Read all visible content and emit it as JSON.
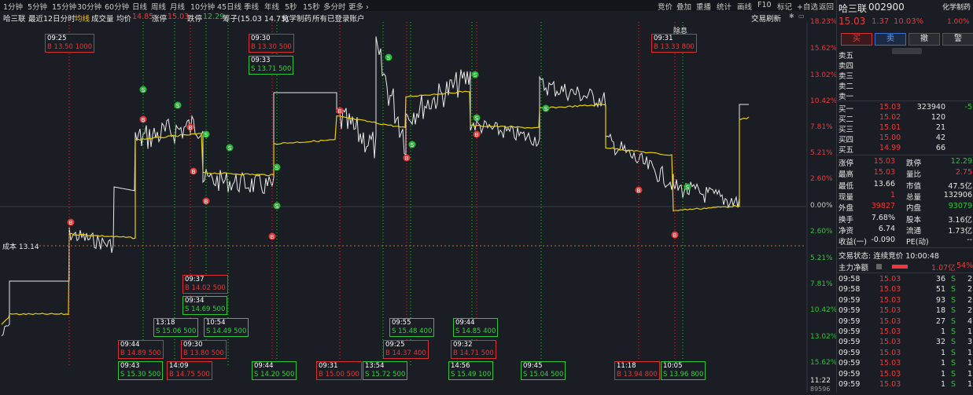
{
  "toolbar": {
    "periods": [
      "1分钟",
      "5分钟",
      "15分钟",
      "30分钟",
      "60分钟",
      "日线",
      "周线",
      "月线",
      "10分钟",
      "45日线",
      "季线",
      "年线",
      "5秒",
      "15秒",
      "多分时",
      "更多 ›"
    ],
    "right": [
      "竞价",
      "叠加",
      "重播",
      "统计",
      "画线",
      "F10",
      "标记",
      "+自选",
      "返回"
    ]
  },
  "infobar": {
    "stock": "哈三联",
    "days": "最近12日分时",
    "avg_line": "均线",
    "volume": "成交量",
    "avg_label": "均价",
    "avg_value": "14.85",
    "limit_up_label": "涨停",
    "limit_up_value": "15.03",
    "limit_down_label": "跌停",
    "limit_down_value": "12.29",
    "chips": "筹子(15.03 14.73)",
    "sector": "化学制药",
    "account": "所有已登录账户",
    "refresh": "交易刷新"
  },
  "axis": {
    "right_pct": [
      "18.23%",
      "15.62%",
      "13.02%",
      "10.42%",
      "7.81%",
      "5.21%",
      "2.60%",
      "0.00%",
      "2.60%",
      "5.21%",
      "7.81%",
      "10.42%",
      "13.02%",
      "15.62%"
    ],
    "bottom_time": "11:22",
    "bottom_vol": "89596"
  },
  "cost_line": {
    "label": "成本 13.14"
  },
  "ex_rights": "除息",
  "chart_data": {
    "type": "line",
    "title": "",
    "x": "最近12日分时",
    "series": [
      {
        "name": "分时",
        "color": "#e8e8e8"
      },
      {
        "name": "均线",
        "color": "#e8d000"
      }
    ],
    "ylim_pct": [
      -15.62,
      18.23
    ],
    "cost": 13.14
  },
  "orders": [
    {
      "time": "09:25",
      "detail": "B 13.50 1000",
      "side": "buy"
    },
    {
      "time": "09:30",
      "detail": "B 13.30 500",
      "side": "buy"
    },
    {
      "time": "09:33",
      "detail": "S 13.71 500",
      "side": "sell"
    },
    {
      "time": "09:31",
      "detail": "B 13.33 800",
      "side": "buy"
    },
    {
      "time": "09:37",
      "detail": "B 14.02 500",
      "side": "buy"
    },
    {
      "time": "09:34",
      "detail": "S 14.69 500",
      "side": "sell"
    },
    {
      "time": "13:18",
      "detail": "S 15.06 500",
      "side": "sell"
    },
    {
      "time": "10:54",
      "detail": "S 14.49 500",
      "side": "sell"
    },
    {
      "time": "09:55",
      "detail": "S 15.48 400",
      "side": "sell"
    },
    {
      "time": "09:44",
      "detail": "S 14.85 400",
      "side": "sell"
    },
    {
      "time": "09:44",
      "detail": "B 14.89 500",
      "side": "buy"
    },
    {
      "time": "09:30",
      "detail": "B 13.80 500",
      "side": "buy"
    },
    {
      "time": "09:25",
      "detail": "B 14.37 400",
      "side": "buy"
    },
    {
      "time": "09:32",
      "detail": "B 14.71 500",
      "side": "buy"
    },
    {
      "time": "09:43",
      "detail": "S 15.30 500",
      "side": "sell"
    },
    {
      "time": "14:09",
      "detail": "B 14.75 500",
      "side": "buy"
    },
    {
      "time": "09:44",
      "detail": "S 14.20 500",
      "side": "sell"
    },
    {
      "time": "09:31",
      "detail": "B 15.00 500",
      "side": "buy"
    },
    {
      "time": "13:54",
      "detail": "S 15.72 500",
      "side": "sell"
    },
    {
      "time": "14:56",
      "detail": "S 15.49 100",
      "side": "sell"
    },
    {
      "time": "09:45",
      "detail": "S 15.04 500",
      "side": "sell"
    },
    {
      "time": "11:18",
      "detail": "B 13.94 800",
      "side": "buy"
    },
    {
      "time": "10:05",
      "detail": "S 13.96 800",
      "side": "sell"
    }
  ],
  "right_panel": {
    "name": "哈三联",
    "code": "002900",
    "price": "15.03",
    "change": "1.37",
    "pct": "10.03%",
    "sector": "化学制药",
    "sector_pct": "1.00%",
    "buttons": [
      "买",
      "卖",
      "撤",
      "警"
    ],
    "sells": [
      "卖五",
      "卖四",
      "卖三",
      "卖二",
      "卖一"
    ],
    "buys": [
      {
        "label": "买一",
        "price": "15.03",
        "vol": "323940",
        "chg": "-5"
      },
      {
        "label": "买二",
        "price": "15.02",
        "vol": "120",
        "chg": ""
      },
      {
        "label": "买三",
        "price": "15.01",
        "vol": "21",
        "chg": ""
      },
      {
        "label": "买四",
        "price": "15.00",
        "vol": "42",
        "chg": ""
      },
      {
        "label": "买五",
        "price": "14.99",
        "vol": "66",
        "chg": ""
      }
    ],
    "stats": [
      {
        "l1": "涨停",
        "v1": "15.03",
        "l2": "跌停",
        "v2": "12.29",
        "c1": "red",
        "c2": "green"
      },
      {
        "l1": "最高",
        "v1": "15.03",
        "l2": "量比",
        "v2": "2.75",
        "c1": "red",
        "c2": "red"
      },
      {
        "l1": "最低",
        "v1": "13.66",
        "l2": "市值",
        "v2": "47.5亿",
        "c1": "white",
        "c2": "white"
      },
      {
        "l1": "现量",
        "v1": "1",
        "l2": "总量",
        "v2": "132906",
        "c1": "red",
        "c2": "white"
      },
      {
        "l1": "外盘",
        "v1": "39827",
        "l2": "内盘",
        "v2": "93079",
        "c1": "red",
        "c2": "green"
      },
      {
        "l1": "换手",
        "v1": "7.68%",
        "l2": "股本",
        "v2": "3.16亿",
        "c1": "white",
        "c2": "white"
      },
      {
        "l1": "净资",
        "v1": "6.74",
        "l2": "流通",
        "v2": "1.73亿",
        "c1": "white",
        "c2": "white"
      },
      {
        "l1": "收益(一)",
        "v1": "-0.090",
        "l2": "PE(动)",
        "v2": "--",
        "c1": "white",
        "c2": "white"
      }
    ],
    "trade_status": "交易状态: 连续竞价 10:00:48",
    "main_flow_label": "主力净额",
    "main_flow_value": "1.07亿",
    "main_flow_pct": "54%",
    "ticks": [
      {
        "t": "09:58",
        "p": "15.03",
        "v": "36",
        "s": "S",
        "n": "2"
      },
      {
        "t": "09:58",
        "p": "15.03",
        "v": "51",
        "s": "S",
        "n": "2"
      },
      {
        "t": "09:59",
        "p": "15.03",
        "v": "93",
        "s": "S",
        "n": "2"
      },
      {
        "t": "09:59",
        "p": "15.03",
        "v": "18",
        "s": "S",
        "n": "2"
      },
      {
        "t": "09:59",
        "p": "15.03",
        "v": "27",
        "s": "S",
        "n": "4"
      },
      {
        "t": "09:59",
        "p": "15.03",
        "v": "1",
        "s": "S",
        "n": "1"
      },
      {
        "t": "09:59",
        "p": "15.03",
        "v": "32",
        "s": "S",
        "n": "3"
      },
      {
        "t": "09:59",
        "p": "15.03",
        "v": "1",
        "s": "S",
        "n": "1"
      },
      {
        "t": "09:59",
        "p": "15.03",
        "v": "1",
        "s": "S",
        "n": "1"
      },
      {
        "t": "09:59",
        "p": "15.03",
        "v": "1",
        "s": "S",
        "n": "1"
      },
      {
        "t": "09:59",
        "p": "15.03",
        "v": "1",
        "s": "S",
        "n": "1"
      }
    ]
  }
}
